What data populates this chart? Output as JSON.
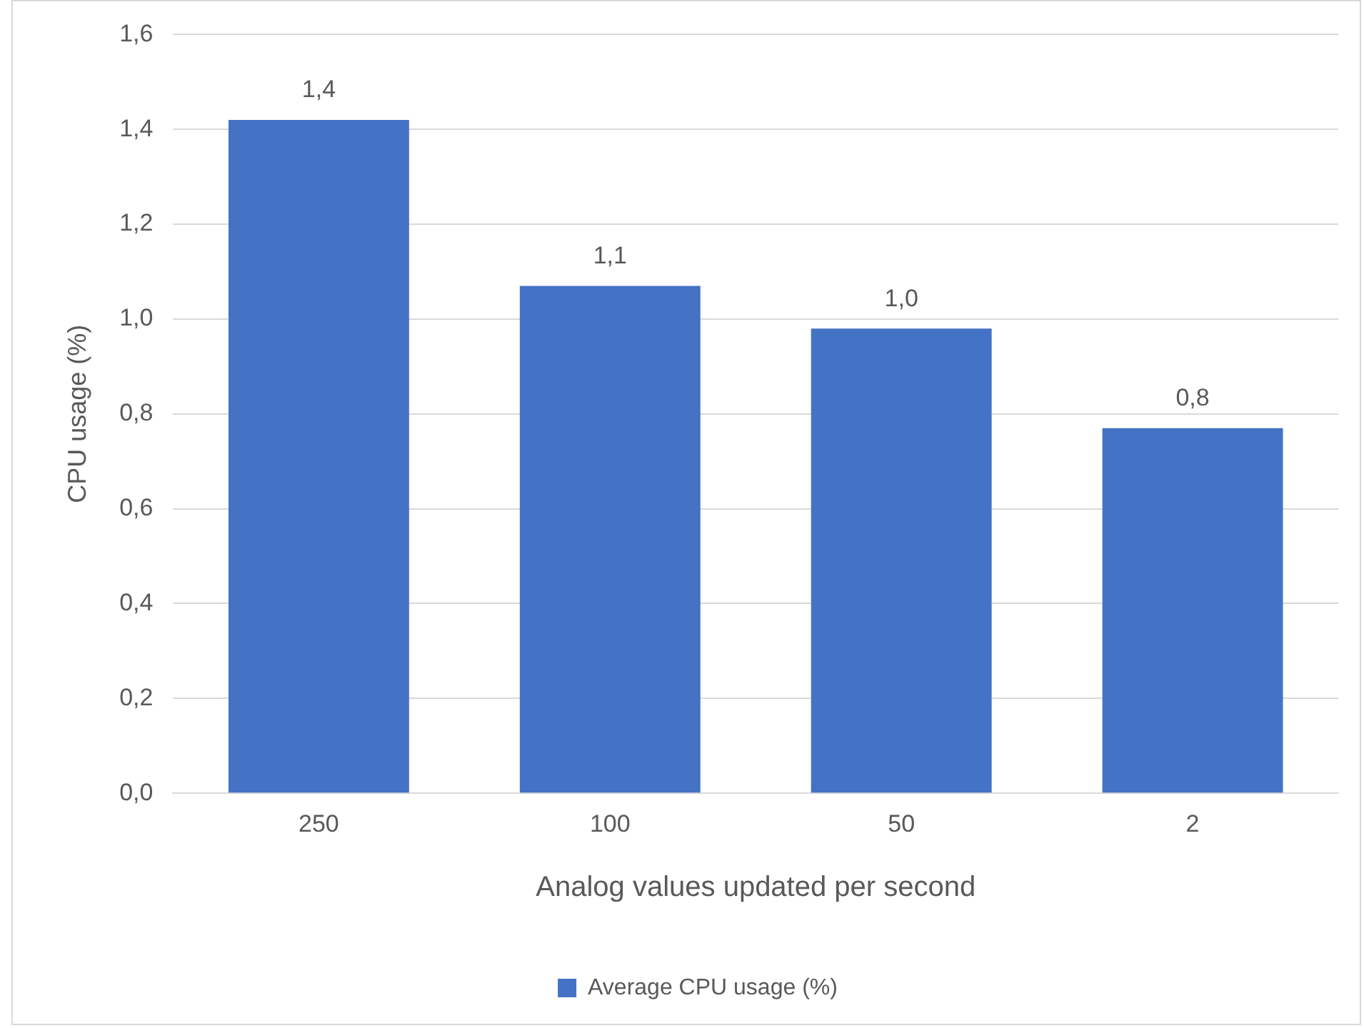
{
  "chart_data": {
    "type": "bar",
    "xlabel": "Analog values updated per second",
    "ylabel": "CPU usage (%)",
    "categories": [
      "250",
      "100",
      "50",
      "2"
    ],
    "series": [
      {
        "name": "Average CPU usage (%)",
        "color": "#4472c4",
        "values": [
          1.42,
          1.07,
          0.98,
          0.77
        ],
        "value_labels": [
          "1,4",
          "1,1",
          "1,0",
          "0,8"
        ]
      }
    ],
    "ylim": [
      0,
      1.6
    ],
    "yticks": [
      {
        "value": 0,
        "label": "0,0"
      },
      {
        "value": 0.2,
        "label": "0,2"
      },
      {
        "value": 0.4,
        "label": "0,4"
      },
      {
        "value": 0.6,
        "label": "0,6"
      },
      {
        "value": 0.8,
        "label": "0,8"
      },
      {
        "value": 1,
        "label": "1,0"
      },
      {
        "value": 1.2,
        "label": "1,2"
      },
      {
        "value": 1.4,
        "label": "1,4"
      },
      {
        "value": 1.6,
        "label": "1,6"
      }
    ],
    "grid": "y",
    "legend": "bottom"
  }
}
